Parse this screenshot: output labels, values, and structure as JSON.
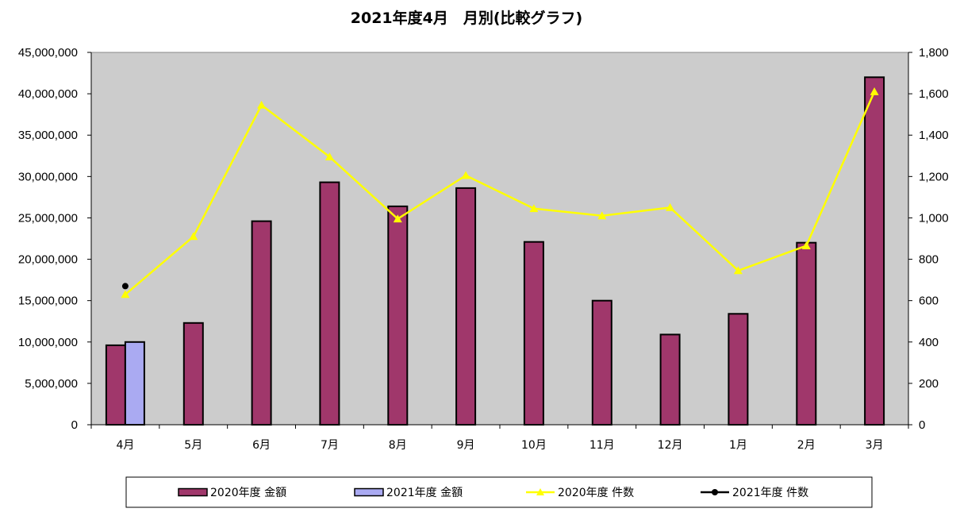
{
  "chart_data": {
    "type": "bar",
    "title": "2021年度4月　月別(比較グラフ)",
    "categories": [
      "4月",
      "5月",
      "6月",
      "7月",
      "8月",
      "9月",
      "10月",
      "11月",
      "12月",
      "1月",
      "2月",
      "3月"
    ],
    "series": [
      {
        "name": "2020年度 金額",
        "type": "bar",
        "axis": "left",
        "color": "#a0376b",
        "values": [
          9600000,
          12300000,
          24600000,
          29300000,
          26400000,
          28600000,
          22100000,
          15000000,
          10900000,
          13400000,
          22000000,
          42000000
        ]
      },
      {
        "name": "2021年度 金額",
        "type": "bar",
        "axis": "left",
        "color": "#aaaaf2",
        "values": [
          10000000,
          null,
          null,
          null,
          null,
          null,
          null,
          null,
          null,
          null,
          null,
          null
        ]
      },
      {
        "name": "2020年度 件数",
        "type": "line",
        "axis": "right",
        "color": "#ffff00",
        "marker": "triangle",
        "values": [
          630,
          910,
          1545,
          1295,
          995,
          1205,
          1045,
          1010,
          1050,
          745,
          865,
          1610
        ]
      },
      {
        "name": "2021年度 件数",
        "type": "line",
        "axis": "right",
        "color": "#000000",
        "marker": "circle",
        "values": [
          670,
          null,
          null,
          null,
          null,
          null,
          null,
          null,
          null,
          null,
          null,
          null
        ]
      }
    ],
    "y_left": {
      "min": 0,
      "max": 45000000,
      "step": 5000000,
      "tick_labels": [
        "0",
        "5,000,000",
        "10,000,000",
        "15,000,000",
        "20,000,000",
        "25,000,000",
        "30,000,000",
        "35,000,000",
        "40,000,000",
        "45,000,000"
      ]
    },
    "y_right": {
      "min": 0,
      "max": 1800,
      "step": 200,
      "tick_labels": [
        "0",
        "200",
        "400",
        "600",
        "800",
        "1,000",
        "1,200",
        "1,400",
        "1,600",
        "1,800"
      ]
    },
    "plot_background": "#cccccc",
    "grid": false,
    "legend_position": "bottom"
  }
}
